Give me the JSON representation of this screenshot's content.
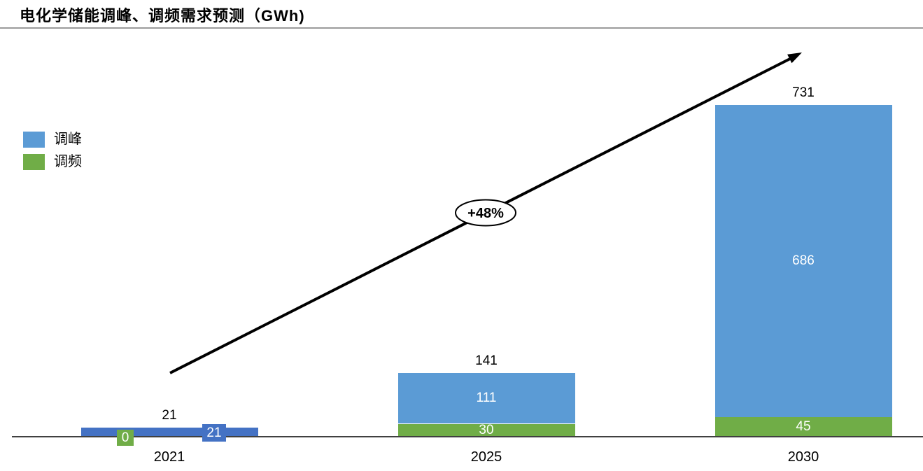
{
  "title": "电化学储能调峰、调频需求预测（GWh)",
  "legend": {
    "items": [
      {
        "label": "调峰",
        "color": "#5B9BD5"
      },
      {
        "label": "调频",
        "color": "#70AD47"
      }
    ]
  },
  "annotation": {
    "growth_label": "+48%"
  },
  "colors": {
    "peak_blue": "#5B9BD5",
    "freq_green": "#70AD47",
    "small_bar_blue": "#4472C4",
    "axis_line": "#404040",
    "title_separator": "#9B9B9B",
    "arrow": "#000000"
  },
  "chart_data": {
    "type": "bar",
    "stacked": true,
    "title": "电化学储能调峰、调频需求预测（GWh)",
    "categories": [
      "2021",
      "2025",
      "2030"
    ],
    "series": [
      {
        "name": "调频",
        "key": "frequency-regulation",
        "color": "#70AD47",
        "values": [
          0,
          30,
          45
        ]
      },
      {
        "name": "调峰",
        "key": "peak-shaving",
        "color": "#5B9BD5",
        "colors_by_category": [
          "#4472C4",
          "#5B9BD5",
          "#5B9BD5"
        ],
        "values": [
          21,
          111,
          686
        ]
      }
    ],
    "totals": [
      21,
      141,
      731
    ],
    "xlabel": "",
    "ylabel": "",
    "ylim": [
      0,
      760
    ],
    "grid": false,
    "y_axis_visible": false,
    "legend_position": "upper-left",
    "annotations": [
      {
        "text": "+48%",
        "shape": "ellipse-on-arrow",
        "arrow_from_category": "2021",
        "arrow_direction": "up-right"
      }
    ]
  }
}
